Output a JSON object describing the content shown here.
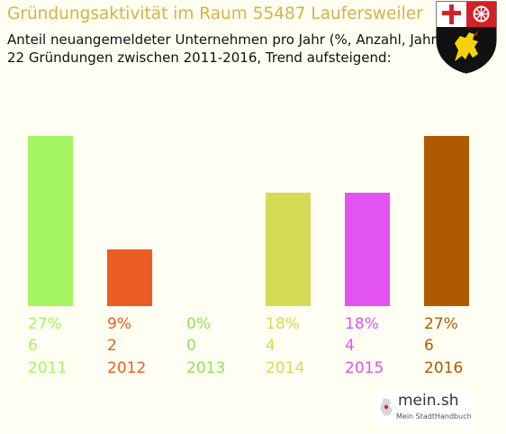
{
  "header": {
    "title": "Gründungsaktivität im Raum 55487 Laufersweiler",
    "subtitle_line1": "Anteil neuangemeldeter Unternehmen pro Jahr (%, Anzahl, Jahr)",
    "subtitle_line2": "22 Gründungen zwischen 2011-2016, Trend aufsteigend:"
  },
  "logo": {
    "text": "mein.sh",
    "tagline": "Mein StadtHandbuch"
  },
  "chart_data": {
    "type": "bar",
    "categories": [
      "2011",
      "2012",
      "2013",
      "2014",
      "2015",
      "2016"
    ],
    "values": [
      6,
      2,
      0,
      4,
      4,
      6
    ],
    "percent_labels": [
      "27%",
      "9%",
      "0%",
      "18%",
      "18%",
      "27%"
    ],
    "count_labels": [
      "6",
      "2",
      "0",
      "4",
      "4",
      "6"
    ],
    "colors": [
      "#a6f562",
      "#eb5d22",
      "#90e25a",
      "#d6db57",
      "#e253ef",
      "#b05a00"
    ],
    "ylim": [
      0,
      6
    ],
    "grid": false
  }
}
